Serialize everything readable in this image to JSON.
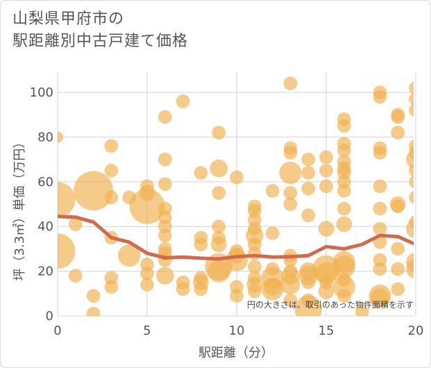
{
  "chart_data": {
    "type": "scatter",
    "title_lines": [
      "山梨県甲府市の",
      "駅距離別中古戸建て価格"
    ],
    "xlabel": "駅距離（分）",
    "ylabel": "坪（3.3㎡）単価（万円）",
    "xlim": [
      0,
      20
    ],
    "ylim": [
      0,
      110
    ],
    "xticks": [
      0,
      5,
      10,
      15,
      20
    ],
    "yticks": [
      0,
      20,
      40,
      60,
      80,
      100
    ],
    "grid": true,
    "annotation": "円の大きさは、取引のあった物件面積を示す",
    "colors": {
      "bubble": "#f0b251",
      "line": "#d2694d",
      "grid": "#c9d4e0",
      "text": "#555555"
    },
    "points": [
      {
        "x": 0,
        "y": 80,
        "s": 0.2
      },
      {
        "x": 0,
        "y": 52,
        "s": 2
      },
      {
        "x": 0,
        "y": 29,
        "s": 2
      },
      {
        "x": 1,
        "y": 41,
        "s": 0.3
      },
      {
        "x": 1,
        "y": 18,
        "s": 0.3
      },
      {
        "x": 2,
        "y": 56,
        "s": 2.5
      },
      {
        "x": 2,
        "y": 9,
        "s": 0.3
      },
      {
        "x": 2,
        "y": 1,
        "s": 0.3
      },
      {
        "x": 3,
        "y": 76,
        "s": 0.3
      },
      {
        "x": 3,
        "y": 65,
        "s": 0.3
      },
      {
        "x": 3,
        "y": 53,
        "s": 0.3
      },
      {
        "x": 3,
        "y": 35,
        "s": 0.3
      },
      {
        "x": 3,
        "y": 17,
        "s": 0.3
      },
      {
        "x": 3,
        "y": 13,
        "s": 0.3
      },
      {
        "x": 4,
        "y": 53,
        "s": 0.3
      },
      {
        "x": 4,
        "y": 27,
        "s": 0.8
      },
      {
        "x": 5,
        "y": 58,
        "s": 0.3
      },
      {
        "x": 5,
        "y": 55,
        "s": 0.4
      },
      {
        "x": 5,
        "y": 49,
        "s": 2
      },
      {
        "x": 5,
        "y": 23,
        "s": 0.3
      },
      {
        "x": 5,
        "y": 19,
        "s": 0.3
      },
      {
        "x": 5,
        "y": 14,
        "s": 0.3
      },
      {
        "x": 6,
        "y": 89,
        "s": 0.3
      },
      {
        "x": 6,
        "y": 70,
        "s": 0.3
      },
      {
        "x": 6,
        "y": 59,
        "s": 0.3
      },
      {
        "x": 6,
        "y": 48,
        "s": 0.3
      },
      {
        "x": 6,
        "y": 44,
        "s": 0.3
      },
      {
        "x": 6,
        "y": 40,
        "s": 0.3
      },
      {
        "x": 6,
        "y": 36,
        "s": 0.3
      },
      {
        "x": 6,
        "y": 30,
        "s": 0.3
      },
      {
        "x": 6,
        "y": 28,
        "s": 0.3
      },
      {
        "x": 6,
        "y": 25,
        "s": 0.3
      },
      {
        "x": 6,
        "y": 18,
        "s": 0.5
      },
      {
        "x": 7,
        "y": 96,
        "s": 0.3
      },
      {
        "x": 7,
        "y": 15,
        "s": 0.3
      },
      {
        "x": 7,
        "y": 12,
        "s": 0.3
      },
      {
        "x": 8,
        "y": 64,
        "s": 0.3
      },
      {
        "x": 8,
        "y": 35,
        "s": 0.3
      },
      {
        "x": 8,
        "y": 32,
        "s": 0.3
      },
      {
        "x": 8,
        "y": 17,
        "s": 0.3
      },
      {
        "x": 8,
        "y": 15,
        "s": 0.4
      },
      {
        "x": 8,
        "y": 12,
        "s": 0.3
      },
      {
        "x": 9,
        "y": 82,
        "s": 0.3
      },
      {
        "x": 9,
        "y": 66,
        "s": 0.5
      },
      {
        "x": 9,
        "y": 55,
        "s": 0.3
      },
      {
        "x": 9,
        "y": 40,
        "s": 0.3
      },
      {
        "x": 9,
        "y": 35,
        "s": 0.3
      },
      {
        "x": 9,
        "y": 32,
        "s": 0.4
      },
      {
        "x": 9,
        "y": 22,
        "s": 1.2
      },
      {
        "x": 9,
        "y": 20,
        "s": 0.8
      },
      {
        "x": 10,
        "y": 62,
        "s": 0.3
      },
      {
        "x": 10,
        "y": 29,
        "s": 0.3
      },
      {
        "x": 10,
        "y": 27,
        "s": 0.4
      },
      {
        "x": 10,
        "y": 25,
        "s": 0.8
      },
      {
        "x": 10,
        "y": 13,
        "s": 0.3
      },
      {
        "x": 10,
        "y": 9,
        "s": 0.3
      },
      {
        "x": 11,
        "y": 49,
        "s": 0.3
      },
      {
        "x": 11,
        "y": 47,
        "s": 0.3
      },
      {
        "x": 11,
        "y": 43,
        "s": 0.3
      },
      {
        "x": 11,
        "y": 39,
        "s": 0.3
      },
      {
        "x": 11,
        "y": 36,
        "s": 0.5
      },
      {
        "x": 11,
        "y": 32,
        "s": 0.3
      },
      {
        "x": 11,
        "y": 28,
        "s": 0.3
      },
      {
        "x": 11,
        "y": 22,
        "s": 0.3
      },
      {
        "x": 11,
        "y": 17,
        "s": 0.3
      },
      {
        "x": 11,
        "y": 14,
        "s": 0.4
      },
      {
        "x": 11,
        "y": 11,
        "s": 0.3
      },
      {
        "x": 12,
        "y": 56,
        "s": 0.3
      },
      {
        "x": 12,
        "y": 37,
        "s": 0.3
      },
      {
        "x": 12,
        "y": 21,
        "s": 0.3
      },
      {
        "x": 12,
        "y": 17,
        "s": 0.8
      },
      {
        "x": 12,
        "y": 13,
        "s": 0.5
      },
      {
        "x": 12,
        "y": 12,
        "s": 0.8
      },
      {
        "x": 13,
        "y": 104,
        "s": 0.3
      },
      {
        "x": 13,
        "y": 75,
        "s": 0.3
      },
      {
        "x": 13,
        "y": 73,
        "s": 0.3
      },
      {
        "x": 13,
        "y": 64,
        "s": 0.8
      },
      {
        "x": 13,
        "y": 55,
        "s": 0.3
      },
      {
        "x": 13,
        "y": 50,
        "s": 0.3
      },
      {
        "x": 13,
        "y": 27,
        "s": 0.3
      },
      {
        "x": 13,
        "y": 25,
        "s": 0.3
      },
      {
        "x": 13,
        "y": 20,
        "s": 0.3
      },
      {
        "x": 13,
        "y": 18,
        "s": 0.5
      },
      {
        "x": 13,
        "y": 14,
        "s": 0.6
      },
      {
        "x": 13,
        "y": 7,
        "s": 0.3
      },
      {
        "x": 14,
        "y": 70,
        "s": 0.3
      },
      {
        "x": 14,
        "y": 64,
        "s": 0.3
      },
      {
        "x": 14,
        "y": 57,
        "s": 0.3
      },
      {
        "x": 14,
        "y": 45,
        "s": 0.3
      },
      {
        "x": 14,
        "y": 20,
        "s": 0.5
      },
      {
        "x": 14,
        "y": 18,
        "s": 0.6
      },
      {
        "x": 14,
        "y": 15,
        "s": 0.3
      },
      {
        "x": 14,
        "y": 7,
        "s": 0.3
      },
      {
        "x": 14,
        "y": 3,
        "s": 1.2
      },
      {
        "x": 15,
        "y": 71,
        "s": 0.3
      },
      {
        "x": 15,
        "y": 65,
        "s": 0.3
      },
      {
        "x": 15,
        "y": 58,
        "s": 0.3
      },
      {
        "x": 15,
        "y": 39,
        "s": 0.4
      },
      {
        "x": 15,
        "y": 21,
        "s": 1.2
      },
      {
        "x": 15,
        "y": 19,
        "s": 0.8
      },
      {
        "x": 15,
        "y": 15,
        "s": 0.3
      },
      {
        "x": 15,
        "y": 11,
        "s": 0.4
      },
      {
        "x": 16,
        "y": 88,
        "s": 0.3
      },
      {
        "x": 16,
        "y": 85,
        "s": 0.3
      },
      {
        "x": 16,
        "y": 77,
        "s": 0.3
      },
      {
        "x": 16,
        "y": 74,
        "s": 0.3
      },
      {
        "x": 16,
        "y": 69,
        "s": 0.3
      },
      {
        "x": 16,
        "y": 66,
        "s": 0.3
      },
      {
        "x": 16,
        "y": 64,
        "s": 0.3
      },
      {
        "x": 16,
        "y": 60,
        "s": 0.3
      },
      {
        "x": 16,
        "y": 56,
        "s": 0.3
      },
      {
        "x": 16,
        "y": 48,
        "s": 0.3
      },
      {
        "x": 16,
        "y": 41,
        "s": 0.4
      },
      {
        "x": 16,
        "y": 24,
        "s": 0.8
      },
      {
        "x": 16,
        "y": 22,
        "s": 0.8
      },
      {
        "x": 16,
        "y": 16,
        "s": 0.3
      },
      {
        "x": 16,
        "y": 13,
        "s": 0.8
      },
      {
        "x": 16,
        "y": 9,
        "s": 0.3
      },
      {
        "x": 17,
        "y": 2,
        "s": 0.3
      },
      {
        "x": 18,
        "y": 100,
        "s": 0.3
      },
      {
        "x": 18,
        "y": 98,
        "s": 0.3
      },
      {
        "x": 18,
        "y": 75,
        "s": 0.3
      },
      {
        "x": 18,
        "y": 73,
        "s": 0.3
      },
      {
        "x": 18,
        "y": 58,
        "s": 0.3
      },
      {
        "x": 18,
        "y": 48,
        "s": 0.3
      },
      {
        "x": 18,
        "y": 39,
        "s": 0.3
      },
      {
        "x": 18,
        "y": 33,
        "s": 0.3
      },
      {
        "x": 18,
        "y": 25,
        "s": 0.3
      },
      {
        "x": 18,
        "y": 21,
        "s": 0.3
      },
      {
        "x": 18,
        "y": 9,
        "s": 0.8
      },
      {
        "x": 18,
        "y": 8,
        "s": 0.6
      },
      {
        "x": 19,
        "y": 90,
        "s": 0.3
      },
      {
        "x": 19,
        "y": 89,
        "s": 0.3
      },
      {
        "x": 19,
        "y": 82,
        "s": 0.3
      },
      {
        "x": 19,
        "y": 50,
        "s": 0.4
      },
      {
        "x": 19,
        "y": 49,
        "s": 0.3
      },
      {
        "x": 19,
        "y": 30,
        "s": 0.3
      },
      {
        "x": 19,
        "y": 21,
        "s": 0.3
      },
      {
        "x": 19,
        "y": 12,
        "s": 0.3
      },
      {
        "x": 20,
        "y": 102,
        "s": 0.3
      },
      {
        "x": 20,
        "y": 97,
        "s": 0.3
      },
      {
        "x": 20,
        "y": 92,
        "s": 0.3
      },
      {
        "x": 20,
        "y": 76,
        "s": 0.3
      },
      {
        "x": 20,
        "y": 73,
        "s": 0.3
      },
      {
        "x": 20,
        "y": 70,
        "s": 0.6
      },
      {
        "x": 20,
        "y": 65,
        "s": 0.3
      },
      {
        "x": 20,
        "y": 60,
        "s": 0.3
      },
      {
        "x": 20,
        "y": 53,
        "s": 0.3
      },
      {
        "x": 20,
        "y": 42,
        "s": 0.3
      },
      {
        "x": 20,
        "y": 39,
        "s": 0.6
      },
      {
        "x": 20,
        "y": 24,
        "s": 0.6
      },
      {
        "x": 20,
        "y": 21,
        "s": 0.6
      }
    ],
    "trend_line": {
      "x": [
        0,
        1,
        2,
        3,
        4,
        5,
        6,
        7,
        8,
        9,
        10,
        11,
        12,
        13,
        14,
        15,
        16,
        17,
        18,
        19,
        20
      ],
      "y": [
        44.5,
        44.2,
        42,
        35,
        33,
        28,
        26,
        26.3,
        25.8,
        25.5,
        26.5,
        27,
        26.3,
        26.5,
        27,
        31,
        30,
        32,
        36,
        35.5,
        32
      ]
    }
  }
}
